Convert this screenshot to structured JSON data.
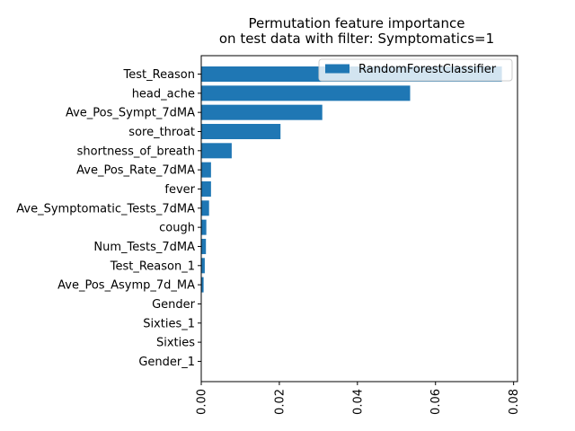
{
  "chart_data": {
    "type": "bar",
    "orientation": "horizontal",
    "title": "Permutation feature importance\non test data with filter: Symptomatics=1",
    "xlabel": "",
    "ylabel": "",
    "xlim": [
      0,
      0.081
    ],
    "xticks": [
      "0.00",
      "0.02",
      "0.04",
      "0.06",
      "0.08"
    ],
    "xtick_values": [
      0,
      0.02,
      0.04,
      0.06,
      0.08
    ],
    "grid": false,
    "legend_position": "top-right",
    "categories": [
      "Test_Reason",
      "head_ache",
      "Ave_Pos_Sympt_7dMA",
      "sore_throat",
      "shortness_of_breath",
      "Ave_Pos_Rate_7dMA",
      "fever",
      "Ave_Symptomatic_Tests_7dMA",
      "cough",
      "Num_Tests_7dMA",
      "Test_Reason_1",
      "Ave_Pos_Asymp_7d_MA",
      "Gender",
      "Sixties_1",
      "Sixties",
      "Gender_1"
    ],
    "series": [
      {
        "name": "RandomForestClassifier",
        "color": "#1f77b4",
        "values": [
          0.077,
          0.0535,
          0.031,
          0.0203,
          0.0078,
          0.0025,
          0.0025,
          0.002,
          0.0013,
          0.0012,
          0.0009,
          0.0006,
          0.0,
          0.0,
          0.0,
          0.0
        ]
      }
    ]
  }
}
